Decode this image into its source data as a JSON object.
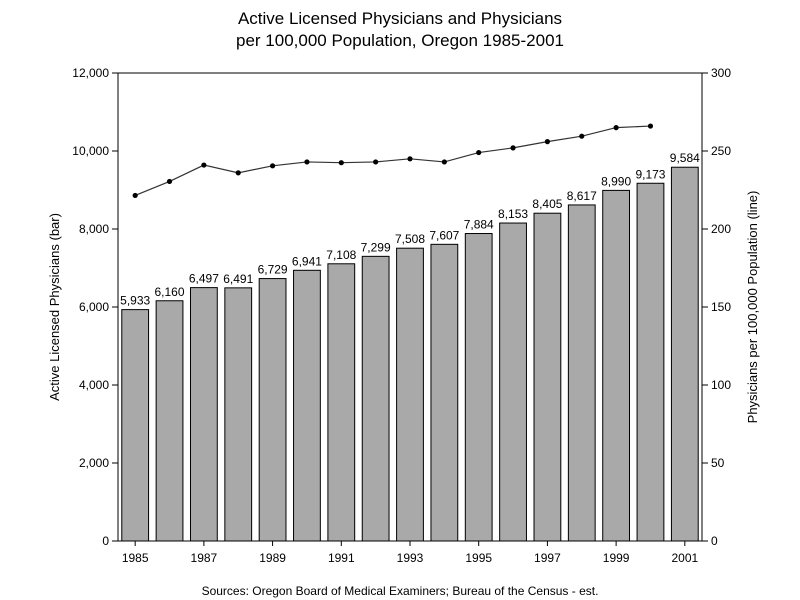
{
  "chart_data": {
    "type": "bar",
    "title_lines": [
      "Active Licensed Physicians and Physicians",
      "per 100,000 Population, Oregon 1985-2001"
    ],
    "ylabel_left": "Active Licensed Physicians (bar)",
    "ylabel_right": "Physicians per 100,000 Population (line)",
    "source": "Sources: Oregon Board of Medical Examiners; Bureau of the Census - est.",
    "x": [
      1985,
      1986,
      1987,
      1988,
      1989,
      1990,
      1991,
      1992,
      1993,
      1994,
      1995,
      1996,
      1997,
      1998,
      1999,
      2000,
      2001
    ],
    "x_tick_labels": [
      "1985",
      "1987",
      "1989",
      "1991",
      "1993",
      "1995",
      "1997",
      "1999",
      "2001"
    ],
    "bar_series": {
      "values": [
        5933,
        6160,
        6497,
        6491,
        6729,
        6941,
        7108,
        7299,
        7508,
        7607,
        7884,
        8153,
        8405,
        8617,
        8990,
        9173,
        9584
      ],
      "labels": [
        "5,933",
        "6,160",
        "6,497",
        "6,491",
        "6,729",
        "6,941",
        "7,108",
        "7,299",
        "7,508",
        "7,607",
        "7,884",
        "8,153",
        "8,405",
        "8,617",
        "8,990",
        "9,173",
        "9,584"
      ],
      "color": "#a9a9a9"
    },
    "line_series": {
      "x": [
        1985,
        1986,
        1987,
        1988,
        1989,
        1990,
        1991,
        1992,
        1993,
        1994,
        1995,
        1996,
        1997,
        1998,
        1999,
        2000
      ],
      "values": [
        221.5,
        230.5,
        241,
        236,
        240.5,
        243,
        242.5,
        243,
        245,
        243,
        249,
        252,
        256,
        259.5,
        265,
        266
      ],
      "color": "#333333"
    },
    "ylim_left": [
      0,
      12000
    ],
    "yticks_left": [
      0,
      2000,
      4000,
      6000,
      8000,
      10000,
      12000
    ],
    "ytick_labels_left": [
      "0",
      "2,000",
      "4,000",
      "6,000",
      "8,000",
      "10,000",
      "12,000"
    ],
    "ylim_right": [
      0,
      300
    ],
    "yticks_right": [
      0,
      50,
      100,
      150,
      200,
      250,
      300
    ],
    "ytick_labels_right": [
      "0",
      "50",
      "100",
      "150",
      "200",
      "250",
      "300"
    ],
    "grid": false
  }
}
